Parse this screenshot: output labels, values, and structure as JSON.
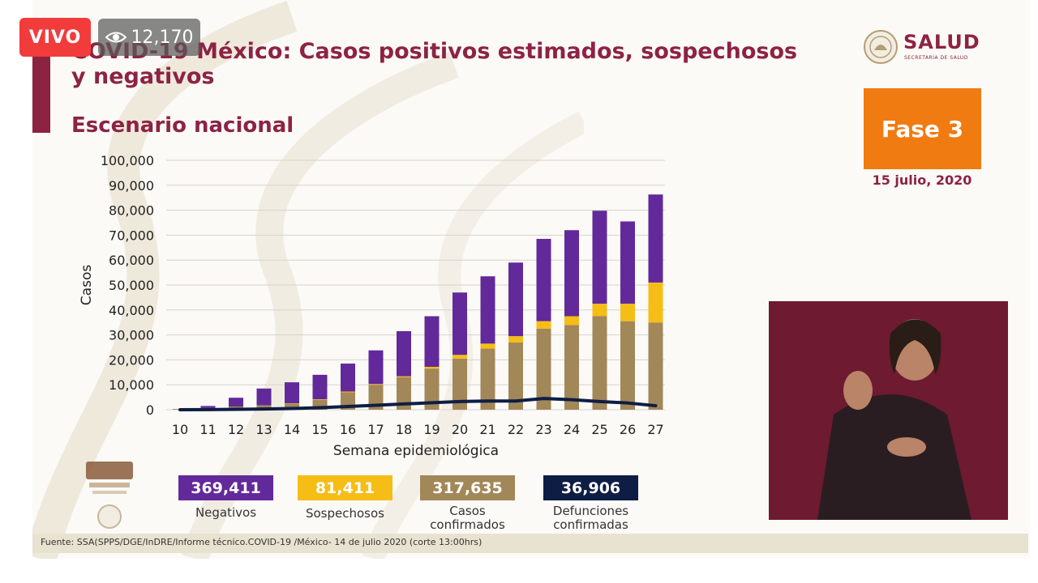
{
  "stream": {
    "live_label": "VIVO",
    "viewer_count": "12,170",
    "viewer_icon": "eye-icon",
    "live_color": "#f23c3c"
  },
  "header": {
    "title": "COVID-19 México: Casos positivos estimados, sospechosos y negativos",
    "subtitle": "Escenario nacional",
    "brand_color": "#8d2343"
  },
  "logo": {
    "name": "SALUD",
    "sub": "SECRETARÍA DE SALUD"
  },
  "phase": {
    "label": "Fase 3",
    "date": "15 julio, 2020",
    "color": "#f07b11"
  },
  "chart_data": {
    "type": "bar",
    "stacked": true,
    "categories": [
      "10",
      "11",
      "12",
      "13",
      "14",
      "15",
      "16",
      "17",
      "18",
      "19",
      "20",
      "21",
      "22",
      "23",
      "24",
      "25",
      "26",
      "27"
    ],
    "series": [
      {
        "name": "Casos confirmados",
        "color": "#a28758",
        "values": [
          300,
          700,
          1300,
          1800,
          2500,
          4000,
          7000,
          10000,
          13000,
          16500,
          20500,
          24500,
          27000,
          32500,
          34000,
          37500,
          35500,
          35000
        ]
      },
      {
        "name": "Sospechosos",
        "color": "#f6bd16",
        "values": [
          0,
          0,
          0,
          0,
          100,
          200,
          300,
          300,
          400,
          700,
          1500,
          2000,
          2500,
          3000,
          3500,
          5000,
          7000,
          16000
        ]
      },
      {
        "name": "Negativos",
        "color": "#62299a",
        "values": [
          0,
          800,
          3500,
          6700,
          8400,
          9800,
          11200,
          13500,
          18100,
          20300,
          25000,
          27000,
          29500,
          33000,
          34500,
          37300,
          33000,
          35300
        ]
      }
    ],
    "line": {
      "name": "Defunciones confirmadas",
      "color": "#0e1d43",
      "values": [
        0,
        50,
        150,
        300,
        500,
        800,
        1300,
        1800,
        2300,
        2800,
        3300,
        3500,
        3500,
        4500,
        4000,
        3300,
        2700,
        1600
      ]
    },
    "xlabel": "Semana epidemiológica",
    "ylabel": "Casos",
    "ylim": [
      0,
      100000
    ],
    "yticks": [
      "0",
      "10,000",
      "20,000",
      "30,000",
      "40,000",
      "50,000",
      "60,000",
      "70,000",
      "80,000",
      "90,000",
      "100,000"
    ],
    "grid": true
  },
  "summary": [
    {
      "value": "369,411",
      "caption_line1": "Negativos",
      "caption_line2": "",
      "color": "#62299a"
    },
    {
      "value": "81,411",
      "caption_line1": "Sospechosos",
      "caption_line2": "",
      "color": "#f6bd16"
    },
    {
      "value": "317,635",
      "caption_line1": "Casos",
      "caption_line2": "confirmados",
      "color": "#a28758"
    },
    {
      "value": "36,906",
      "caption_line1": "Defunciones",
      "caption_line2": "confirmadas",
      "color": "#0e1d43"
    }
  ],
  "footer": {
    "source": "Fuente: SSA(SPPS/DGE/InDRE/Informe técnico.COVID-19 /México- 14 de julio 2020 (corte 13:00hrs)"
  }
}
